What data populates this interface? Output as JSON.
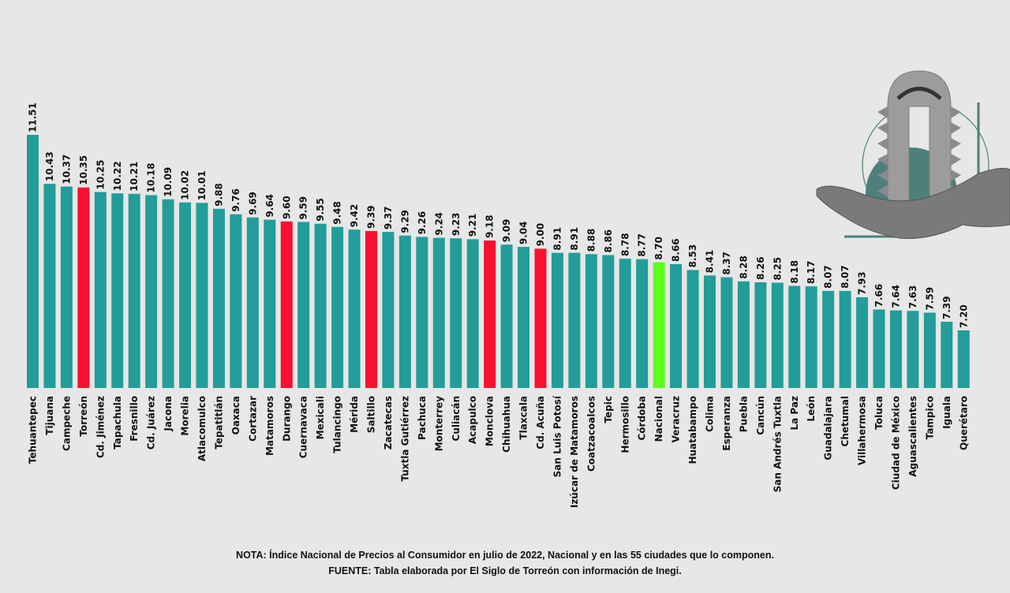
{
  "chart_data": {
    "type": "bar",
    "title": "",
    "xlabel": "",
    "ylabel": "",
    "ylim": [
      5.93,
      11.51
    ],
    "grid": false,
    "legend": "none",
    "categories": [
      "Tehuantepec",
      "Tijuana",
      "Campeche",
      "Torreón",
      "Cd. Jiménez",
      "Tapachula",
      "Fresnillo",
      "Cd. Juárez",
      "Jacona",
      "Morelia",
      "Atlacomulco",
      "Tepatitlán",
      "Oaxaca",
      "Cortazar",
      "Matamoros",
      "Durango",
      "Cuernavaca",
      "Mexicali",
      "Tulancingo",
      "Mérida",
      "Saltillo",
      "Zacatecas",
      "Tuxtla Gutiérrez",
      "Pachuca",
      "Monterrey",
      "Culiacán",
      "Acapulco",
      "Monclova",
      "Chihuahua",
      "Tlaxcala",
      "Cd. Acuña",
      "San Luis Potosí",
      "Izúcar de Matamoros",
      "Coatzacoalcos",
      "Tepic",
      "Hermosillo",
      "Córdoba",
      "Nacional",
      "Veracruz",
      "Huatabampo",
      "Colima",
      "Esperanza",
      "Puebla",
      "Cancún",
      "San Andrés Tuxtla",
      "La Paz",
      "León",
      "Guadalajara",
      "Chetumal",
      "Villahermosa",
      "Toluca",
      "Ciudad de México",
      "Aguascalientes",
      "Tampico",
      "Iguala",
      "Querétaro"
    ],
    "values": [
      11.51,
      10.43,
      10.37,
      10.35,
      10.25,
      10.22,
      10.21,
      10.18,
      10.09,
      10.02,
      10.01,
      9.88,
      9.76,
      9.69,
      9.64,
      9.6,
      9.59,
      9.55,
      9.48,
      9.42,
      9.39,
      9.37,
      9.29,
      9.26,
      9.24,
      9.23,
      9.21,
      9.18,
      9.09,
      9.04,
      9.0,
      8.91,
      8.91,
      8.88,
      8.86,
      8.78,
      8.77,
      8.7,
      8.66,
      8.53,
      8.41,
      8.37,
      8.28,
      8.26,
      8.25,
      8.18,
      8.17,
      8.07,
      8.07,
      7.93,
      7.66,
      7.64,
      7.63,
      7.59,
      7.39,
      7.2
    ],
    "value_labels": [
      "11.51",
      "10.43",
      "10.37",
      "10.35",
      "10.25",
      "10.22",
      "10.21",
      "10.18",
      "10.09",
      "10.02",
      "10.01",
      "9.88",
      "9.76",
      "9.69",
      "9.64",
      "9.60",
      "9.59",
      "9.55",
      "9.48",
      "9.42",
      "9.39",
      "9.37",
      "9.29",
      "9.26",
      "9.24",
      "9.23",
      "9.21",
      "9.18",
      "9.09",
      "9.04",
      "9.00",
      "8.91",
      "8.91",
      "8.88",
      "8.86",
      "8.78",
      "8.77",
      "8.70",
      "8.66",
      "8.53",
      "8.41",
      "8.37",
      "8.28",
      "8.26",
      "8.25",
      "8.18",
      "8.17",
      "8.07",
      "8.07",
      "7.93",
      "7.66",
      "7.64",
      "7.63",
      "7.59",
      "7.39",
      "7.20"
    ],
    "highlight": {
      "Torreón": "red",
      "Durango": "red",
      "Saltillo": "red",
      "Monclova": "red",
      "Cd. Acuña": "red",
      "Nacional": "green"
    }
  },
  "colors": {
    "default_bar": "#229d9a",
    "red": "#f8102f",
    "green": "#5dfd1c",
    "background": "#e6e7e6",
    "illustration_teal": "#4e7f7b"
  },
  "notes": {
    "nota": "NOTA: Índice Nacional de Precios al Consumidor en julio de 2022, Nacional y en las 55 ciudades que lo componen.",
    "fuente": "FUENTE: Tabla elaborada por El Siglo de Torreón con información de Inegi."
  },
  "illustration": {
    "subject": "hand-holding-building-icon"
  }
}
